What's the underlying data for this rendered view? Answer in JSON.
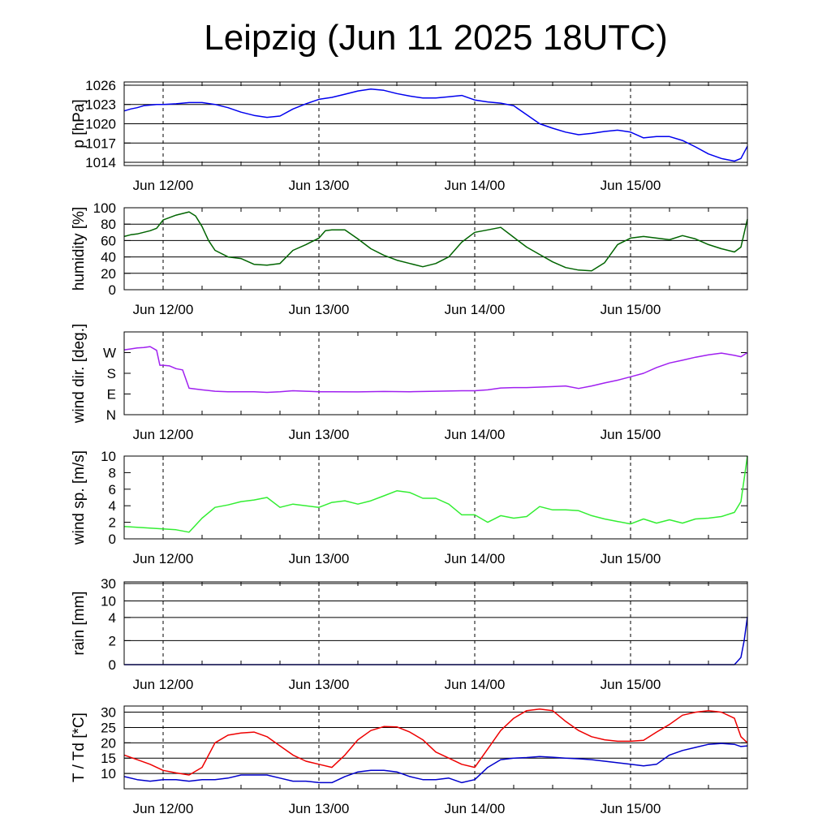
{
  "title": "Leipzig (Jun 11 2025 18UTC)",
  "x_ticks": [
    {
      "label": "Jun 12/00",
      "hour": 6
    },
    {
      "label": "Jun 13/00",
      "hour": 30
    },
    {
      "label": "Jun 14/00",
      "hour": 54
    },
    {
      "label": "Jun 15/00",
      "hour": 78
    }
  ],
  "x_range": [
    0,
    96
  ],
  "colors": {
    "pressure": "#0000ee",
    "humidity": "#006400",
    "wind_dir": "#a020f0",
    "wind_speed": "#33ee33",
    "rain": "#0000cc",
    "temperature": "#ee0000",
    "dewpoint": "#0000cc"
  },
  "chart_data": [
    {
      "id": "pressure",
      "type": "line",
      "ylabel": "p [hPa]",
      "ylim": [
        1013.5,
        1026.5
      ],
      "ticks": [
        {
          "v": 1014,
          "label": "1014"
        },
        {
          "v": 1017,
          "label": "1017"
        },
        {
          "v": 1020,
          "label": "1020"
        },
        {
          "v": 1023,
          "label": "1023"
        },
        {
          "v": 1026,
          "label": "1026"
        }
      ],
      "grid": true,
      "series": [
        {
          "key": "pressure",
          "x": [
            0,
            1,
            2,
            3,
            4,
            5,
            6,
            8,
            10,
            12,
            14,
            16,
            18,
            20,
            22,
            24,
            26,
            28,
            30,
            32,
            34,
            36,
            38,
            40,
            42,
            44,
            46,
            48,
            50,
            52,
            54,
            56,
            58,
            60,
            62,
            64,
            66,
            68,
            70,
            72,
            74,
            76,
            78,
            80,
            82,
            84,
            86,
            88,
            90,
            92,
            94,
            95,
            96
          ],
          "y": [
            1022.0,
            1022.3,
            1022.5,
            1022.8,
            1022.9,
            1023.0,
            1023.0,
            1023.1,
            1023.3,
            1023.3,
            1023.0,
            1022.5,
            1021.8,
            1021.3,
            1021.0,
            1021.2,
            1022.3,
            1023.1,
            1023.8,
            1024.1,
            1024.6,
            1025.1,
            1025.4,
            1025.2,
            1024.7,
            1024.3,
            1024.0,
            1024.0,
            1024.2,
            1024.4,
            1023.7,
            1023.4,
            1023.2,
            1022.8,
            1021.4,
            1020.0,
            1019.3,
            1018.7,
            1018.3,
            1018.5,
            1018.8,
            1019.0,
            1018.7,
            1017.8,
            1018.0,
            1018.0,
            1017.4,
            1016.4,
            1015.3,
            1014.6,
            1014.2,
            1014.6,
            1016.5
          ]
        }
      ]
    },
    {
      "id": "humidity",
      "type": "line",
      "ylabel": "humidity [%]",
      "ylim": [
        0,
        100
      ],
      "ticks": [
        {
          "v": 0,
          "label": "0"
        },
        {
          "v": 20,
          "label": "20"
        },
        {
          "v": 40,
          "label": "40"
        },
        {
          "v": 60,
          "label": "60"
        },
        {
          "v": 80,
          "label": "80"
        },
        {
          "v": 100,
          "label": "100"
        }
      ],
      "grid": true,
      "series": [
        {
          "key": "humidity",
          "x": [
            0,
            1,
            2,
            3,
            4,
            5,
            6,
            7,
            8,
            9,
            10,
            11,
            12,
            13,
            14,
            16,
            18,
            20,
            22,
            24,
            26,
            28,
            30,
            31,
            32,
            34,
            36,
            38,
            40,
            42,
            44,
            46,
            48,
            50,
            52,
            54,
            56,
            58,
            60,
            62,
            64,
            66,
            68,
            70,
            72,
            74,
            76,
            78,
            80,
            82,
            84,
            86,
            88,
            90,
            92,
            94,
            95,
            96
          ],
          "y": [
            65,
            67,
            68,
            70,
            72,
            75,
            85,
            88,
            91,
            93,
            95,
            90,
            77,
            60,
            48,
            40,
            38,
            31,
            30,
            32,
            48,
            55,
            63,
            72,
            73,
            73,
            62,
            50,
            42,
            36,
            32,
            28,
            32,
            40,
            58,
            70,
            73,
            76,
            64,
            52,
            43,
            34,
            27,
            24,
            23,
            33,
            55,
            63,
            65,
            63,
            61,
            66,
            62,
            55,
            50,
            46,
            52,
            86
          ]
        }
      ]
    },
    {
      "id": "wind_dir",
      "type": "line",
      "ylabel": "wind dir. [deg.]",
      "ylim": [
        0,
        360
      ],
      "ticks": [
        {
          "v": 0,
          "label": "N"
        },
        {
          "v": 90,
          "label": "E"
        },
        {
          "v": 180,
          "label": "S"
        },
        {
          "v": 270,
          "label": "W"
        }
      ],
      "grid": false,
      "series": [
        {
          "key": "wind_dir",
          "x": [
            0,
            1,
            2,
            3,
            4,
            5,
            5.5,
            6,
            7,
            8,
            9,
            10,
            12,
            14,
            16,
            18,
            20,
            22,
            24,
            26,
            28,
            30,
            32,
            36,
            40,
            44,
            48,
            52,
            54,
            56,
            58,
            60,
            62,
            64,
            66,
            68,
            70,
            72,
            74,
            76,
            78,
            80,
            82,
            84,
            86,
            88,
            90,
            92,
            94,
            95,
            96
          ],
          "y": [
            282,
            286,
            290,
            292,
            296,
            280,
            215,
            215,
            212,
            200,
            195,
            115,
            108,
            102,
            100,
            100,
            100,
            97,
            100,
            104,
            102,
            100,
            100,
            99,
            101,
            100,
            102,
            104,
            104,
            108,
            116,
            118,
            118,
            120,
            122,
            125,
            114,
            125,
            138,
            150,
            165,
            180,
            205,
            225,
            237,
            250,
            260,
            268,
            258,
            252,
            270
          ]
        }
      ]
    },
    {
      "id": "wind_speed",
      "type": "line",
      "ylabel": "wind sp. [m/s]",
      "ylim": [
        0,
        10
      ],
      "ticks": [
        {
          "v": 0,
          "label": "0"
        },
        {
          "v": 2,
          "label": "2"
        },
        {
          "v": 4,
          "label": "4"
        },
        {
          "v": 6,
          "label": "6"
        },
        {
          "v": 8,
          "label": "8"
        },
        {
          "v": 10,
          "label": "10"
        }
      ],
      "grid": false,
      "series": [
        {
          "key": "wind_speed",
          "x": [
            0,
            2,
            4,
            6,
            8,
            10,
            12,
            14,
            16,
            18,
            20,
            22,
            24,
            26,
            28,
            30,
            32,
            34,
            36,
            38,
            40,
            42,
            44,
            46,
            48,
            50,
            52,
            54,
            56,
            58,
            60,
            62,
            64,
            66,
            68,
            70,
            72,
            74,
            76,
            78,
            80,
            82,
            84,
            86,
            88,
            90,
            92,
            94,
            95,
            96
          ],
          "y": [
            1.5,
            1.4,
            1.3,
            1.2,
            1.1,
            0.8,
            2.5,
            3.8,
            4.1,
            4.5,
            4.7,
            5.0,
            3.8,
            4.2,
            4.0,
            3.8,
            4.4,
            4.6,
            4.2,
            4.6,
            5.2,
            5.8,
            5.6,
            4.9,
            4.9,
            4.2,
            2.9,
            2.9,
            2.0,
            2.8,
            2.5,
            2.7,
            3.9,
            3.5,
            3.5,
            3.4,
            2.8,
            2.4,
            2.1,
            1.8,
            2.4,
            1.9,
            2.3,
            1.9,
            2.4,
            2.5,
            2.7,
            3.2,
            4.5,
            10.0
          ]
        }
      ]
    },
    {
      "id": "rain",
      "type": "line",
      "ylabel": "rain [mm]",
      "ylim": [
        0,
        30
      ],
      "scale": "custom",
      "ticks": [
        {
          "v": 0,
          "label": "0"
        },
        {
          "v": 2,
          "label": "2"
        },
        {
          "v": 4,
          "label": "4"
        },
        {
          "v": 10,
          "label": "10"
        },
        {
          "v": 30,
          "label": "30"
        }
      ],
      "grid": true,
      "series": [
        {
          "key": "rain",
          "x": [
            0,
            20,
            40,
            60,
            80,
            94,
            94.5,
            95,
            95.5,
            96
          ],
          "y": [
            0,
            0,
            0,
            0,
            0,
            0,
            0.3,
            0.6,
            2.0,
            4.2
          ]
        }
      ]
    },
    {
      "id": "temperature",
      "type": "line",
      "ylabel": "T / Td [*C]",
      "ylim": [
        5,
        32
      ],
      "ticks": [
        {
          "v": 10,
          "label": "10"
        },
        {
          "v": 15,
          "label": "15"
        },
        {
          "v": 20,
          "label": "20"
        },
        {
          "v": 25,
          "label": "25"
        },
        {
          "v": 30,
          "label": "30"
        }
      ],
      "grid": true,
      "series": [
        {
          "key": "temperature",
          "x": [
            0,
            2,
            4,
            6,
            8,
            10,
            12,
            14,
            16,
            18,
            20,
            22,
            24,
            26,
            28,
            30,
            32,
            34,
            36,
            38,
            40,
            42,
            44,
            46,
            48,
            50,
            52,
            54,
            56,
            58,
            60,
            62,
            64,
            66,
            68,
            70,
            72,
            74,
            76,
            78,
            80,
            82,
            84,
            86,
            88,
            90,
            92,
            94,
            95,
            96
          ],
          "y": [
            16,
            14.5,
            13,
            11,
            10.2,
            9.5,
            12,
            20,
            22.5,
            23.2,
            23.5,
            22,
            19,
            16,
            14,
            13,
            12,
            16,
            21,
            24,
            25.3,
            25.2,
            23.5,
            21,
            17,
            15,
            13,
            12,
            18,
            24,
            28,
            30.5,
            31,
            30.5,
            27,
            24,
            22,
            21,
            20.5,
            20.5,
            20.8,
            23.5,
            26,
            29,
            30,
            30.5,
            30,
            28,
            22,
            20
          ]
        },
        {
          "key": "dewpoint",
          "x": [
            0,
            2,
            4,
            6,
            8,
            10,
            12,
            14,
            16,
            18,
            20,
            22,
            24,
            26,
            28,
            30,
            32,
            34,
            36,
            38,
            40,
            42,
            44,
            46,
            48,
            50,
            52,
            54,
            56,
            58,
            60,
            62,
            64,
            66,
            68,
            70,
            72,
            74,
            76,
            78,
            80,
            82,
            84,
            86,
            88,
            90,
            92,
            94,
            95,
            96
          ],
          "y": [
            9,
            8,
            7.5,
            8,
            8,
            7.5,
            8,
            8,
            8.5,
            9.5,
            9.5,
            9.5,
            8.5,
            7.5,
            7.5,
            7,
            7,
            9,
            10.5,
            11,
            11,
            10.5,
            9,
            8,
            8,
            8.5,
            7,
            8,
            12,
            14.5,
            15,
            15.2,
            15.5,
            15.3,
            15,
            14.8,
            14.5,
            14,
            13.5,
            13,
            12.5,
            13,
            16,
            17.5,
            18.5,
            19.5,
            19.8,
            19.5,
            18.8,
            19
          ]
        }
      ]
    }
  ]
}
